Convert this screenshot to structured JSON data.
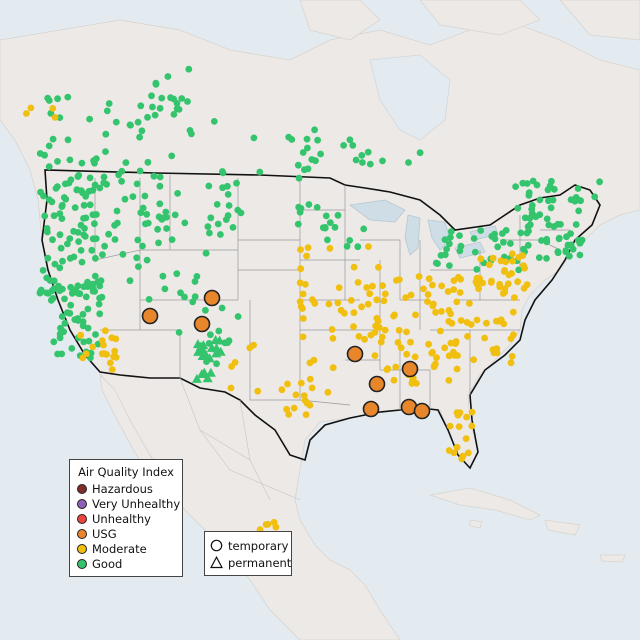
{
  "legend": {
    "title": "Air Quality Index",
    "categories": [
      {
        "label": "Hazardous",
        "color": "#7e2d2d"
      },
      {
        "label": "Very Unhealthy",
        "color": "#8e5fb5"
      },
      {
        "label": "Unhealthy",
        "color": "#e8453c"
      },
      {
        "label": "USG",
        "color": "#e8862b"
      },
      {
        "label": "Moderate",
        "color": "#f0bf0f"
      },
      {
        "label": "Good",
        "color": "#35c46e"
      }
    ]
  },
  "site_types": [
    {
      "label": "temporary",
      "shape": "circle"
    },
    {
      "label": "permanent",
      "shape": "triangle"
    }
  ]
}
